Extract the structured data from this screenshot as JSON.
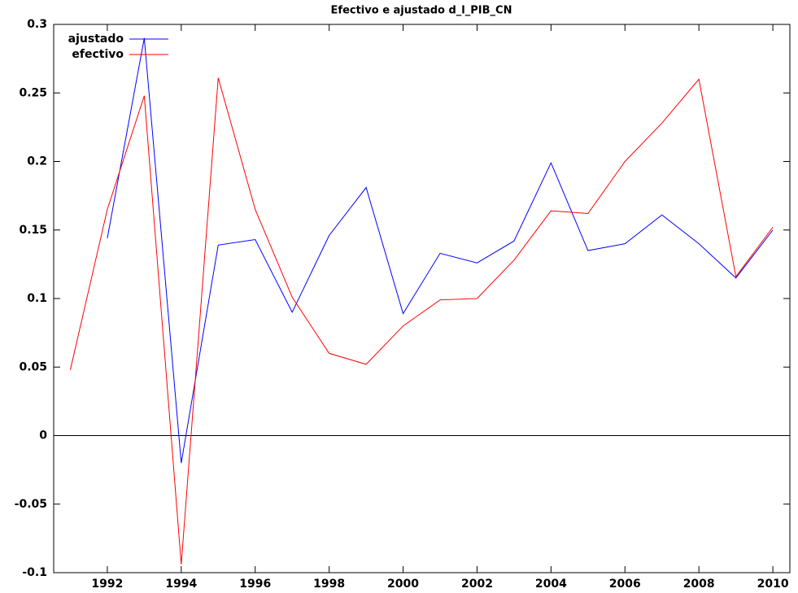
{
  "chart_data": {
    "type": "line",
    "title": "Efectivo e ajustado d_l_PIB_CN",
    "x": [
      1991,
      1992,
      1993,
      1994,
      1995,
      1996,
      1997,
      1998,
      1999,
      2000,
      2001,
      2002,
      2003,
      2004,
      2005,
      2006,
      2007,
      2008,
      2009,
      2010
    ],
    "series": [
      {
        "name": "ajustado",
        "color": "#0000ff",
        "values": [
          null,
          0.144,
          0.29,
          -0.02,
          0.139,
          0.143,
          0.09,
          0.146,
          0.181,
          0.089,
          0.133,
          0.126,
          0.142,
          0.199,
          0.135,
          0.14,
          0.161,
          0.14,
          0.115,
          0.15
        ]
      },
      {
        "name": "efectivo",
        "color": "#ff0000",
        "values": [
          0.048,
          0.165,
          0.248,
          -0.094,
          0.261,
          0.165,
          0.101,
          0.06,
          0.052,
          0.08,
          0.099,
          0.1,
          0.128,
          0.164,
          0.162,
          0.2,
          0.228,
          0.26,
          0.116,
          0.152
        ]
      }
    ],
    "xlim": [
      1990.55,
      2010.46
    ],
    "xticks": [
      1992,
      1994,
      1996,
      1998,
      2000,
      2002,
      2004,
      2006,
      2008,
      2010
    ],
    "ylim": [
      -0.1,
      0.3
    ],
    "yticks": [
      -0.1,
      -0.05,
      0,
      0.05,
      0.1,
      0.15,
      0.2,
      0.25,
      0.3
    ],
    "legend": "top-left"
  }
}
